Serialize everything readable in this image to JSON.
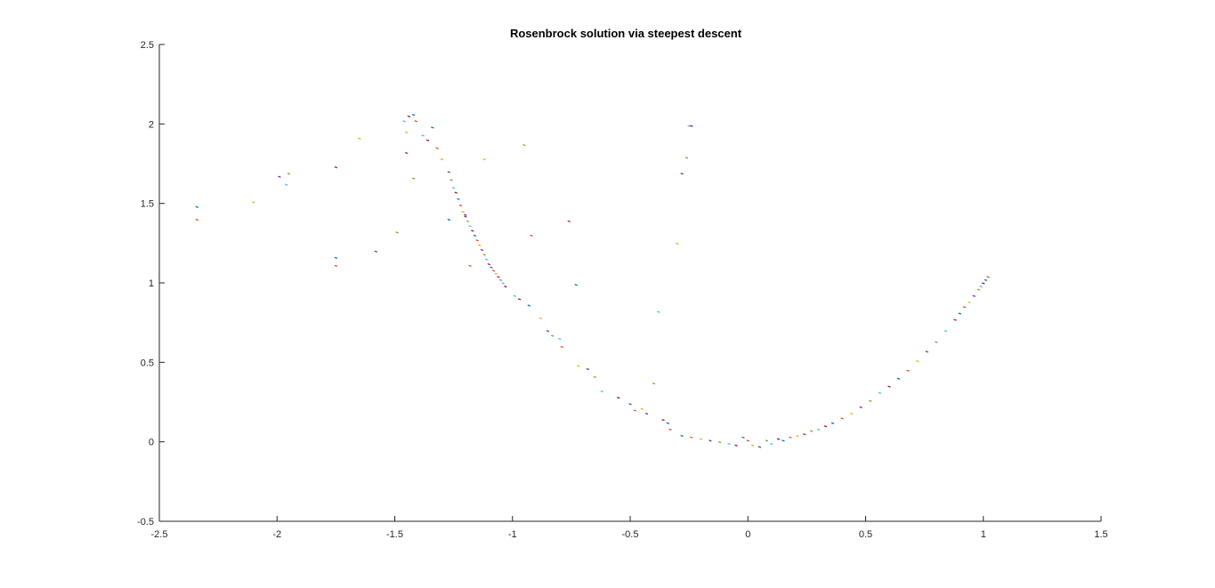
{
  "chart_data": {
    "type": "scatter",
    "title": "Rosenbrock solution via steepest descent",
    "xlabel": "",
    "ylabel": "",
    "xlim": [
      -2.5,
      1.5
    ],
    "ylim": [
      -0.5,
      2.5
    ],
    "xticks": [
      -2.5,
      -2,
      -1.5,
      -1,
      -0.5,
      0,
      0.5,
      1,
      1.5
    ],
    "xtick_labels": [
      "-2.5",
      "-2",
      "-1.5",
      "-1",
      "-0.5",
      "0",
      "0.5",
      "1",
      "1.5"
    ],
    "yticks": [
      -0.5,
      0,
      0.5,
      1,
      1.5,
      2,
      2.5
    ],
    "ytick_labels": [
      "-0.5",
      "0",
      "0.5",
      "1",
      "1.5",
      "2",
      "2.5"
    ],
    "grid": false,
    "legend": "none",
    "colors": [
      "#0072bd",
      "#d95319",
      "#edb120",
      "#7e2f8e",
      "#77ac30",
      "#4dbeee",
      "#a2142f"
    ],
    "points": [
      [
        -2.34,
        1.48
      ],
      [
        -2.34,
        1.4
      ],
      [
        -2.1,
        1.51
      ],
      [
        -1.99,
        1.67
      ],
      [
        -1.95,
        1.69
      ],
      [
        -1.96,
        1.62
      ],
      [
        -1.75,
        1.73
      ],
      [
        -1.75,
        1.16
      ],
      [
        -1.75,
        1.11
      ],
      [
        -1.65,
        1.91
      ],
      [
        -1.58,
        1.2
      ],
      [
        -1.49,
        1.32
      ],
      [
        -1.46,
        2.02
      ],
      [
        -1.44,
        2.05
      ],
      [
        -1.42,
        2.06
      ],
      [
        -1.41,
        2.02
      ],
      [
        -1.45,
        1.95
      ],
      [
        -1.45,
        1.82
      ],
      [
        -1.42,
        1.66
      ],
      [
        -1.38,
        1.93
      ],
      [
        -1.36,
        1.9
      ],
      [
        -1.34,
        1.98
      ],
      [
        -1.32,
        1.85
      ],
      [
        -1.3,
        1.78
      ],
      [
        -1.27,
        1.7
      ],
      [
        -1.26,
        1.65
      ],
      [
        -1.25,
        1.6
      ],
      [
        -1.24,
        1.57
      ],
      [
        -1.23,
        1.53
      ],
      [
        -1.22,
        1.49
      ],
      [
        -1.21,
        1.45
      ],
      [
        -1.2,
        1.42
      ],
      [
        -1.19,
        1.39
      ],
      [
        -1.18,
        1.36
      ],
      [
        -1.17,
        1.33
      ],
      [
        -1.16,
        1.3
      ],
      [
        -1.15,
        1.27
      ],
      [
        -1.14,
        1.24
      ],
      [
        -1.13,
        1.21
      ],
      [
        -1.12,
        1.18
      ],
      [
        -1.11,
        1.15
      ],
      [
        -1.1,
        1.12
      ],
      [
        -1.09,
        1.1
      ],
      [
        -1.08,
        1.08
      ],
      [
        -1.07,
        1.06
      ],
      [
        -1.06,
        1.04
      ],
      [
        -1.05,
        1.02
      ],
      [
        -1.04,
        1.0
      ],
      [
        -1.03,
        0.98
      ],
      [
        -1.27,
        1.4
      ],
      [
        -1.18,
        1.11
      ],
      [
        -1.12,
        1.78
      ],
      [
        -1.2,
        1.43
      ],
      [
        -0.95,
        1.87
      ],
      [
        -0.99,
        0.92
      ],
      [
        -0.97,
        0.9
      ],
      [
        -0.93,
        0.86
      ],
      [
        -0.92,
        1.3
      ],
      [
        -0.88,
        0.78
      ],
      [
        -0.85,
        0.7
      ],
      [
        -0.83,
        0.67
      ],
      [
        -0.8,
        0.65
      ],
      [
        -0.76,
        1.39
      ],
      [
        -0.73,
        0.99
      ],
      [
        -0.79,
        0.6
      ],
      [
        -0.72,
        0.48
      ],
      [
        -0.68,
        0.46
      ],
      [
        -0.65,
        0.41
      ],
      [
        -0.62,
        0.32
      ],
      [
        -0.55,
        0.28
      ],
      [
        -0.5,
        0.24
      ],
      [
        -0.48,
        0.2
      ],
      [
        -0.45,
        0.21
      ],
      [
        -0.43,
        0.18
      ],
      [
        -0.4,
        0.37
      ],
      [
        -0.38,
        0.82
      ],
      [
        -0.36,
        0.14
      ],
      [
        -0.34,
        0.12
      ],
      [
        -0.33,
        0.08
      ],
      [
        -0.3,
        1.25
      ],
      [
        -0.28,
        1.69
      ],
      [
        -0.26,
        1.79
      ],
      [
        -0.25,
        1.99
      ],
      [
        -0.24,
        1.99
      ],
      [
        -0.28,
        0.04
      ],
      [
        -0.24,
        0.03
      ],
      [
        -0.2,
        0.02
      ],
      [
        -0.16,
        0.01
      ],
      [
        -0.12,
        0.0
      ],
      [
        -0.08,
        -0.01
      ],
      [
        -0.05,
        -0.02
      ],
      [
        -0.02,
        0.03
      ],
      [
        0.0,
        0.01
      ],
      [
        0.02,
        -0.02
      ],
      [
        0.05,
        -0.03
      ],
      [
        0.08,
        0.01
      ],
      [
        0.1,
        -0.01
      ],
      [
        0.13,
        0.02
      ],
      [
        0.15,
        0.01
      ],
      [
        0.18,
        0.03
      ],
      [
        0.21,
        0.04
      ],
      [
        0.24,
        0.05
      ],
      [
        0.27,
        0.07
      ],
      [
        0.3,
        0.08
      ],
      [
        0.33,
        0.1
      ],
      [
        0.36,
        0.12
      ],
      [
        0.4,
        0.15
      ],
      [
        0.44,
        0.18
      ],
      [
        0.48,
        0.22
      ],
      [
        0.52,
        0.26
      ],
      [
        0.56,
        0.31
      ],
      [
        0.6,
        0.35
      ],
      [
        0.64,
        0.4
      ],
      [
        0.68,
        0.45
      ],
      [
        0.72,
        0.51
      ],
      [
        0.76,
        0.57
      ],
      [
        0.8,
        0.63
      ],
      [
        0.84,
        0.7
      ],
      [
        0.88,
        0.77
      ],
      [
        0.9,
        0.81
      ],
      [
        0.92,
        0.85
      ],
      [
        0.94,
        0.88
      ],
      [
        0.96,
        0.92
      ],
      [
        0.98,
        0.96
      ],
      [
        0.99,
        0.98
      ],
      [
        1.0,
        1.0
      ],
      [
        1.01,
        1.02
      ],
      [
        1.02,
        1.04
      ]
    ]
  }
}
